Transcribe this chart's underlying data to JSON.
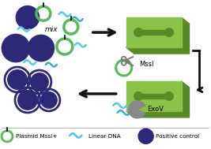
{
  "background_color": "#ffffff",
  "chip_color": "#8bc34a",
  "chip_shadow_color": "#5a8a25",
  "chip_top_color": "#9ccc50",
  "arrow_color": "#111111",
  "wave_color1": "#5bc8e8",
  "wave_color2": "#3aaecc",
  "circle_fill": "#2d2878",
  "circle_edge_green": "#5ab85a",
  "circle_edge_dark": "#2d2878",
  "scissors_color": "#777777",
  "exov_color": "#888888",
  "text_mix": "mix",
  "text_mssl": "MssI",
  "text_exov": "ExoV",
  "legend_plasmid": "Plasmid MssI+",
  "legend_linear": "Linear DNA",
  "legend_positive": "Positive control",
  "figsize": [
    2.67,
    1.89
  ],
  "dpi": 100
}
